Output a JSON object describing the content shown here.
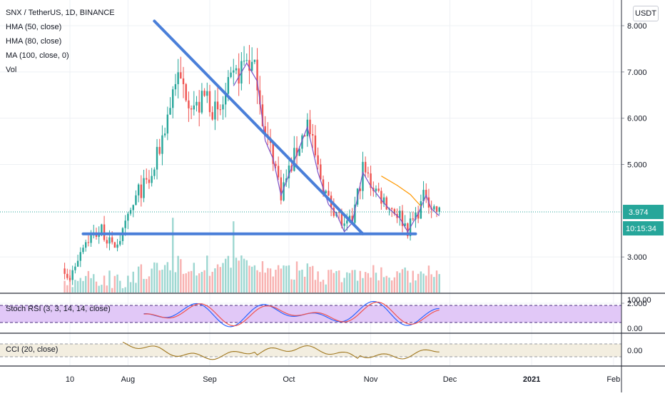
{
  "header": {
    "symbol_line": "SNX / TetherUS, 1D, BINANCE",
    "currency_button": "USDT",
    "indicators": [
      "HMA (50, close)",
      "HMA (80, close)",
      "MA (100, close, 0)",
      "Vol"
    ]
  },
  "price_labels": {
    "last_price": "3.974",
    "countdown": "10:15:34"
  },
  "stoch_rsi": {
    "title": "Stoch RSI (3, 3, 14, 14, close)",
    "ticks": [
      "100.00",
      "0.00"
    ]
  },
  "cci": {
    "title": "CCI (20, close)",
    "ticks": [
      "0.00"
    ]
  },
  "colors": {
    "up": "#26a69a",
    "down": "#ef5350",
    "trendline": "#4a7fd9",
    "hma": "#7b52c9",
    "hma_fast": "#ff9800",
    "last_price": "#26a69a",
    "stoch_k": "#2962ff",
    "stoch_d": "#ef5350",
    "stoch_band": "#e1c8f7",
    "cci_line": "#a0771e"
  },
  "chart_data": [
    {
      "type": "candlestick",
      "title": "SNX / TetherUS, 1D, BINANCE",
      "y_ticks": [
        "8.000",
        "7.000",
        "6.000",
        "5.000",
        "3.000",
        "2.000"
      ],
      "y_range": [
        1.7,
        8.25
      ],
      "x_ticks": [
        "10",
        "Aug",
        "Sep",
        "Oct",
        "Nov",
        "Dec",
        "2021",
        "Feb"
      ],
      "x_range": [
        "2020-07-09",
        "2021-02-20"
      ],
      "last_price": 3.974,
      "series": [
        {
          "name": "HMA (50, close)"
        },
        {
          "name": "HMA (80, close)"
        },
        {
          "name": "MA (100, close, 0)"
        },
        {
          "name": "Vol"
        }
      ],
      "annotations": [
        {
          "type": "trendline",
          "points": [
            [
              "2020-08-11",
              8.1
            ],
            [
              "2020-10-29",
              3.5
            ]
          ]
        },
        {
          "type": "trendline",
          "points": [
            [
              "2020-07-15",
              3.5
            ],
            [
              "2020-11-18",
              3.5
            ]
          ]
        }
      ]
    },
    {
      "type": "line",
      "title": "Stoch RSI (3, 3, 14, 14, close)",
      "y_range": [
        0,
        100
      ],
      "y_ticks": [
        "100.00",
        "0.00"
      ]
    },
    {
      "type": "line",
      "title": "CCI (20, close)",
      "y_ticks": [
        "0.00"
      ]
    }
  ]
}
